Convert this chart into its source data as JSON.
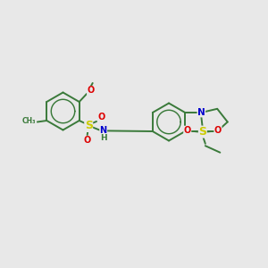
{
  "bg": "#e8e8e8",
  "bond_color": "#3a7a3a",
  "atom_colors": {
    "S": "#cccc00",
    "O": "#dd0000",
    "N": "#0000cc",
    "C": "#3a7a3a"
  },
  "lw": 1.4,
  "fs": 7.0,
  "fs_small": 5.5
}
